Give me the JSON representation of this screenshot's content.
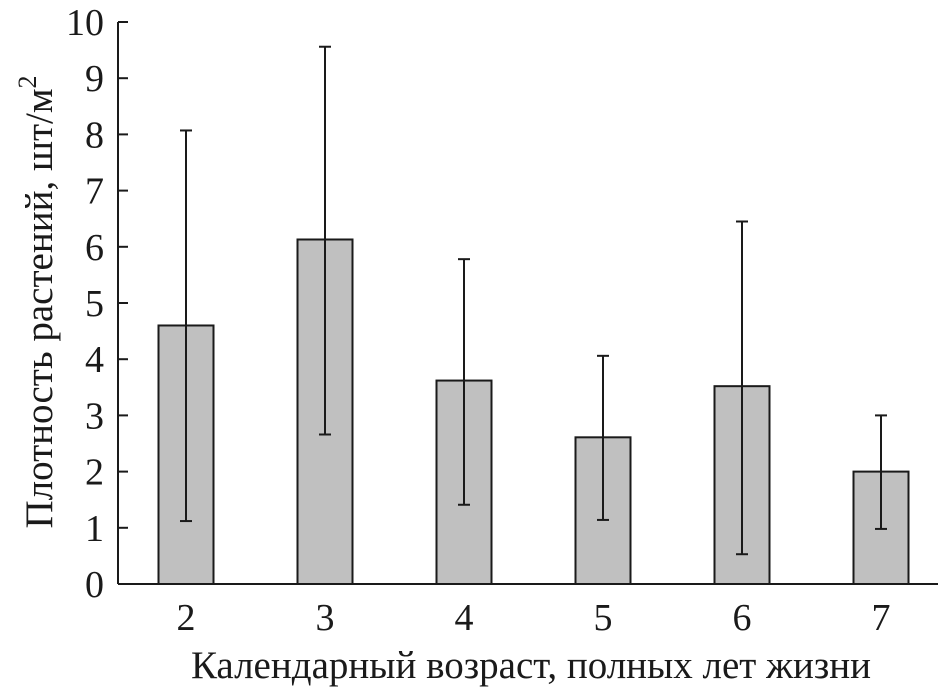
{
  "chart_data": {
    "type": "bar",
    "title": "",
    "xlabel": "Календарный возраст, полных лет жизни",
    "ylabel": "Плотность растений, шт/м",
    "ylabel_superscript": "2",
    "categories": [
      "2",
      "3",
      "4",
      "5",
      "6",
      "7"
    ],
    "values": [
      4.6,
      6.13,
      3.62,
      2.61,
      3.52,
      2.0
    ],
    "error_upper": [
      8.07,
      9.56,
      5.78,
      4.06,
      6.45,
      3.0
    ],
    "error_lower": [
      1.12,
      2.66,
      1.41,
      1.14,
      0.53,
      0.98
    ],
    "ylim": [
      0,
      10
    ],
    "yticks": [
      "0",
      "1",
      "2",
      "3",
      "4",
      "5",
      "6",
      "7",
      "8",
      "9",
      "10"
    ],
    "grid": false,
    "bar_color": "#c0c0c0"
  }
}
